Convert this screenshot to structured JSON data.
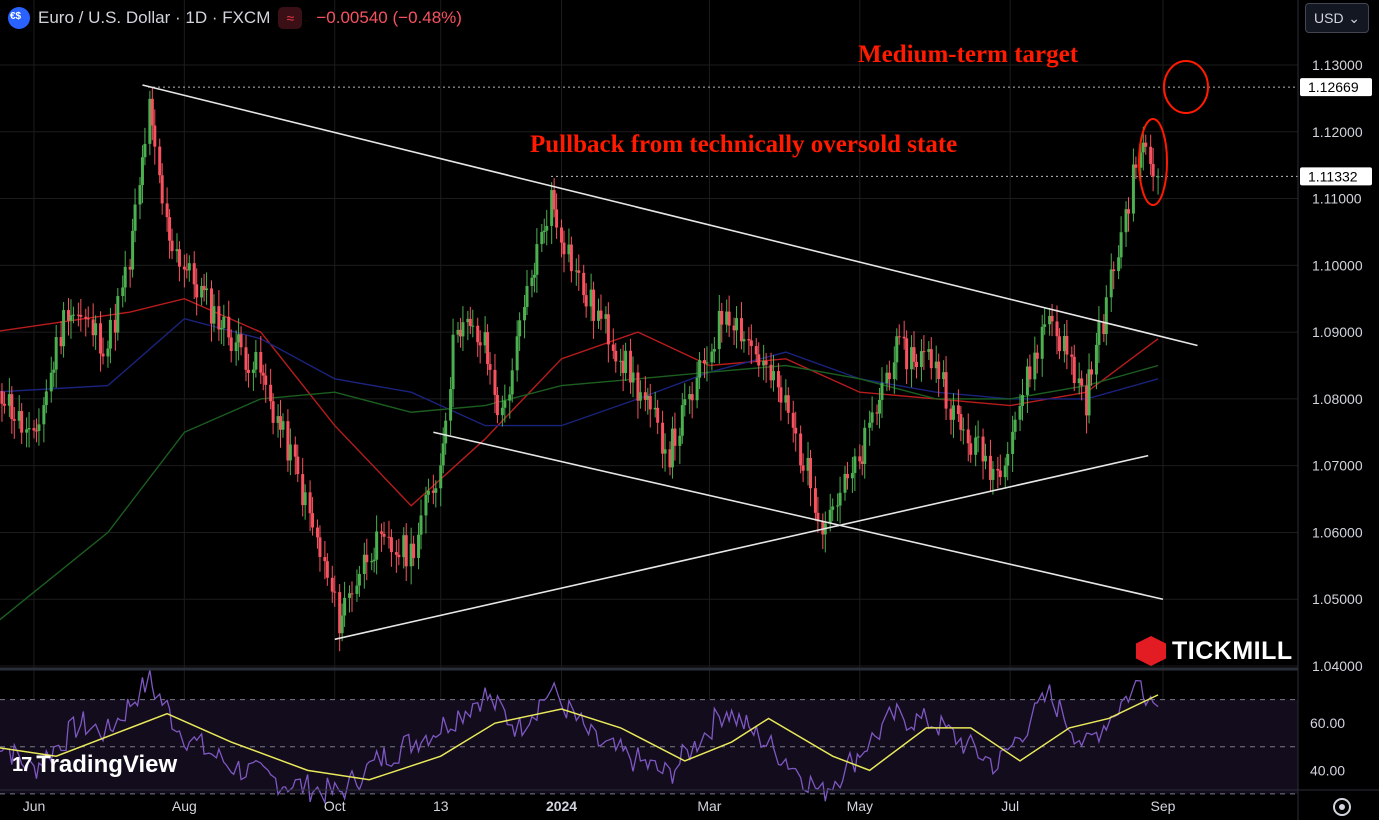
{
  "header": {
    "title": "Euro / U.S. Dollar · 1D · FXCM",
    "change": "−0.00540 (−0.48%)"
  },
  "currency_select": {
    "value": "USD",
    "caret": "⌄"
  },
  "annotations": {
    "target": "Medium-term target",
    "pullback": "Pullback from technically oversold state"
  },
  "brands": {
    "tickmill": "TICKMILL",
    "tradingview": "TradingView",
    "tv_logo": "17"
  },
  "colors": {
    "up": "#4caf50",
    "down": "#f7525f",
    "ma_red": "#b71c1c",
    "ma_blue": "#1a237e",
    "ma_green": "#1b5e20",
    "rsi": "#7e57c2",
    "rsi_ma": "#e8e85a",
    "annotation": "#ff1a00"
  },
  "chart_data": [
    {
      "type": "candlestick",
      "y_ticks": [
        "1.13000",
        "1.12000",
        "1.11000",
        "1.10000",
        "1.09000",
        "1.08000",
        "1.07000",
        "1.06000",
        "1.05000",
        "1.04000"
      ],
      "ylim": [
        1.04,
        1.13
      ],
      "x_ticks": [
        "Jun",
        "Aug",
        "Oct",
        "13",
        "2024",
        "Mar",
        "May",
        "Jul",
        "Sep"
      ],
      "x_tick_dates": [
        "2023-06-01",
        "2023-08-01",
        "2023-10-01",
        "2023-11-13",
        "2024-01-01",
        "2024-03-01",
        "2024-05-01",
        "2024-07-01",
        "2024-09-01"
      ],
      "price_labels": [
        {
          "text": "1.12669",
          "value": 1.12669
        },
        {
          "text": "1.11332",
          "value": 1.11332
        }
      ],
      "close_path": [
        [
          "2023-05-15",
          1.084
        ],
        [
          "2023-06-01",
          1.073
        ],
        [
          "2023-06-15",
          1.094
        ],
        [
          "2023-07-01",
          1.088
        ],
        [
          "2023-07-10",
          1.1
        ],
        [
          "2023-07-18",
          1.123
        ],
        [
          "2023-07-25",
          1.106
        ],
        [
          "2023-08-01",
          1.1
        ],
        [
          "2023-08-15",
          1.092
        ],
        [
          "2023-09-01",
          1.084
        ],
        [
          "2023-09-15",
          1.07
        ],
        [
          "2023-10-03",
          1.047
        ],
        [
          "2023-10-16",
          1.058
        ],
        [
          "2023-11-01",
          1.057
        ],
        [
          "2023-11-13",
          1.07
        ],
        [
          "2023-11-20",
          1.092
        ],
        [
          "2023-12-01",
          1.088
        ],
        [
          "2023-12-08",
          1.077
        ],
        [
          "2023-12-20",
          1.098
        ],
        [
          "2023-12-28",
          1.11
        ],
        [
          "2024-01-10",
          1.096
        ],
        [
          "2024-01-25",
          1.087
        ],
        [
          "2024-02-14",
          1.072
        ],
        [
          "2024-02-25",
          1.082
        ],
        [
          "2024-03-08",
          1.094
        ],
        [
          "2024-03-20",
          1.087
        ],
        [
          "2024-04-01",
          1.079
        ],
        [
          "2024-04-16",
          1.062
        ],
        [
          "2024-05-01",
          1.07
        ],
        [
          "2024-05-15",
          1.087
        ],
        [
          "2024-06-01",
          1.086
        ],
        [
          "2024-06-10",
          1.076
        ],
        [
          "2024-06-26",
          1.069
        ],
        [
          "2024-07-17",
          1.093
        ],
        [
          "2024-08-01",
          1.08
        ],
        [
          "2024-08-08",
          1.092
        ],
        [
          "2024-08-23",
          1.118
        ],
        [
          "2024-08-30",
          1.11332
        ]
      ],
      "moving_averages": {
        "red": [
          [
            "2023-05-15",
            1.09
          ],
          [
            "2023-07-10",
            1.093
          ],
          [
            "2023-08-01",
            1.095
          ],
          [
            "2023-09-01",
            1.09
          ],
          [
            "2023-10-01",
            1.076
          ],
          [
            "2023-11-01",
            1.064
          ],
          [
            "2023-12-01",
            1.074
          ],
          [
            "2024-01-01",
            1.086
          ],
          [
            "2024-02-01",
            1.09
          ],
          [
            "2024-03-01",
            1.085
          ],
          [
            "2024-04-01",
            1.086
          ],
          [
            "2024-05-01",
            1.081
          ],
          [
            "2024-06-01",
            1.08
          ],
          [
            "2024-07-01",
            1.079
          ],
          [
            "2024-08-01",
            1.081
          ],
          [
            "2024-08-30",
            1.089
          ]
        ],
        "blue": [
          [
            "2023-05-15",
            1.081
          ],
          [
            "2023-07-01",
            1.082
          ],
          [
            "2023-08-01",
            1.092
          ],
          [
            "2023-09-01",
            1.089
          ],
          [
            "2023-10-01",
            1.083
          ],
          [
            "2023-11-01",
            1.081
          ],
          [
            "2023-12-01",
            1.076
          ],
          [
            "2024-01-01",
            1.076
          ],
          [
            "2024-02-01",
            1.08
          ],
          [
            "2024-03-01",
            1.084
          ],
          [
            "2024-04-01",
            1.087
          ],
          [
            "2024-05-01",
            1.083
          ],
          [
            "2024-06-01",
            1.081
          ],
          [
            "2024-07-01",
            1.08
          ],
          [
            "2024-08-01",
            1.08
          ],
          [
            "2024-08-30",
            1.083
          ]
        ],
        "green": [
          [
            "2023-05-15",
            1.046
          ],
          [
            "2023-07-01",
            1.06
          ],
          [
            "2023-08-01",
            1.075
          ],
          [
            "2023-09-01",
            1.08
          ],
          [
            "2023-10-01",
            1.081
          ],
          [
            "2023-11-01",
            1.078
          ],
          [
            "2023-12-01",
            1.079
          ],
          [
            "2024-01-01",
            1.082
          ],
          [
            "2024-02-01",
            1.083
          ],
          [
            "2024-03-01",
            1.084
          ],
          [
            "2024-04-01",
            1.085
          ],
          [
            "2024-05-01",
            1.083
          ],
          [
            "2024-06-01",
            1.08
          ],
          [
            "2024-07-01",
            1.08
          ],
          [
            "2024-08-01",
            1.082
          ],
          [
            "2024-08-30",
            1.085
          ]
        ]
      },
      "trendlines": [
        {
          "name": "upper",
          "from": [
            "2023-07-15",
            1.127
          ],
          "to": [
            "2024-09-15",
            1.088
          ]
        },
        {
          "name": "lower-falling",
          "from": [
            "2023-11-10",
            1.075
          ],
          "to": [
            "2024-09-01",
            1.05
          ]
        },
        {
          "name": "support",
          "from": [
            "2023-10-01",
            1.044
          ],
          "to": [
            "2024-08-26",
            1.0715
          ]
        }
      ],
      "reference_lines": [
        1.12669,
        1.11332
      ]
    },
    {
      "type": "line",
      "indicator": "RSI",
      "y_ticks": [
        "60.00",
        "40.00"
      ],
      "ylim": [
        27,
        80
      ],
      "band_levels": [
        70,
        50,
        30
      ],
      "rsi": [
        [
          "2023-05-15",
          55
        ],
        [
          "2023-06-01",
          40
        ],
        [
          "2023-06-20",
          60
        ],
        [
          "2023-07-01",
          56
        ],
        [
          "2023-07-18",
          78
        ],
        [
          "2023-08-01",
          55
        ],
        [
          "2023-08-20",
          42
        ],
        [
          "2023-09-10",
          35
        ],
        [
          "2023-10-03",
          30
        ],
        [
          "2023-10-20",
          45
        ],
        [
          "2023-11-13",
          58
        ],
        [
          "2023-12-01",
          72
        ],
        [
          "2023-12-15",
          58
        ],
        [
          "2023-12-28",
          74
        ],
        [
          "2024-01-15",
          52
        ],
        [
          "2024-02-14",
          38
        ],
        [
          "2024-03-08",
          66
        ],
        [
          "2024-04-01",
          45
        ],
        [
          "2024-04-16",
          30
        ],
        [
          "2024-05-15",
          63
        ],
        [
          "2024-06-01",
          60
        ],
        [
          "2024-06-26",
          42
        ],
        [
          "2024-07-17",
          72
        ],
        [
          "2024-08-01",
          50
        ],
        [
          "2024-08-23",
          78
        ],
        [
          "2024-08-30",
          67
        ]
      ],
      "rsi_ma": [
        [
          "2023-05-15",
          50
        ],
        [
          "2023-06-10",
          46
        ],
        [
          "2023-07-10",
          58
        ],
        [
          "2023-07-25",
          64
        ],
        [
          "2023-08-20",
          52
        ],
        [
          "2023-09-20",
          40
        ],
        [
          "2023-10-15",
          36
        ],
        [
          "2023-11-13",
          46
        ],
        [
          "2023-12-05",
          60
        ],
        [
          "2024-01-01",
          66
        ],
        [
          "2024-01-25",
          58
        ],
        [
          "2024-02-20",
          44
        ],
        [
          "2024-03-10",
          52
        ],
        [
          "2024-03-25",
          62
        ],
        [
          "2024-04-20",
          46
        ],
        [
          "2024-05-05",
          40
        ],
        [
          "2024-05-28",
          58
        ],
        [
          "2024-06-15",
          58
        ],
        [
          "2024-07-05",
          44
        ],
        [
          "2024-07-25",
          58
        ],
        [
          "2024-08-10",
          62
        ],
        [
          "2024-08-30",
          72
        ]
      ]
    }
  ]
}
